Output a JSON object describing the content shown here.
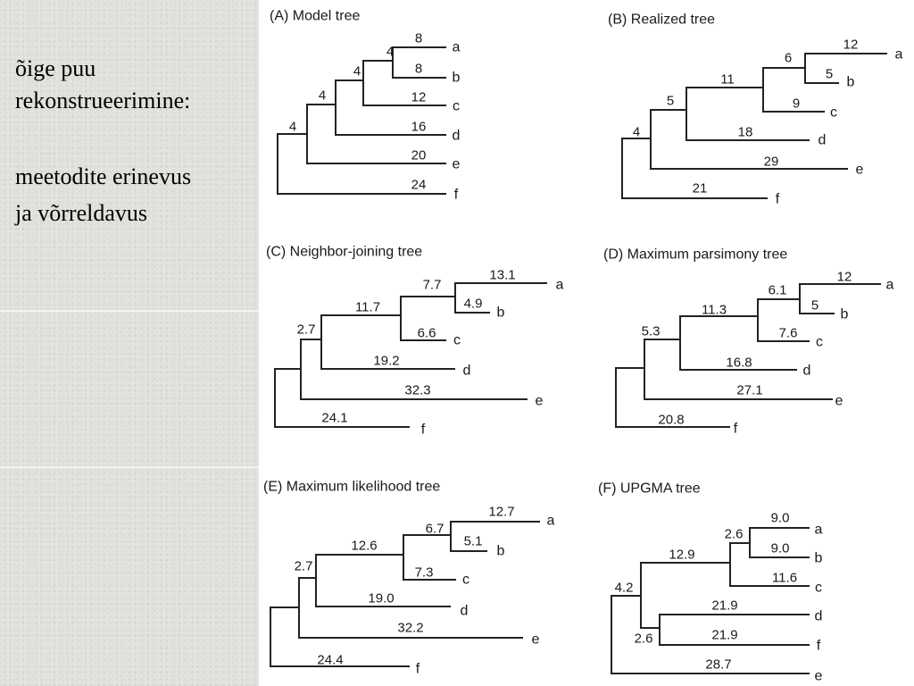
{
  "sidebar": {
    "heading_line1": "õige puu",
    "heading_line2": "rekonstrueerimine:",
    "subheading_line1": "meetodite erinevus",
    "subheading_line2": "ja võrreldavus"
  },
  "trees": [
    {
      "title": "(A) Model tree",
      "branch_labels": [
        "8",
        "8",
        "12",
        "16",
        "20",
        "24",
        "4",
        "4",
        "4",
        "4"
      ],
      "leaves": [
        "a",
        "b",
        "c",
        "d",
        "e",
        "f"
      ]
    },
    {
      "title": "(B) Realized tree",
      "branch_labels": [
        "12",
        "6",
        "5",
        "11",
        "9",
        "5",
        "18",
        "4",
        "29",
        "21"
      ],
      "leaves": [
        "a",
        "b",
        "c",
        "d",
        "e",
        "f"
      ]
    },
    {
      "title": "(C) Neighbor-joining  tree",
      "branch_labels": [
        "13.1",
        "7.7",
        "4.9",
        "11.7",
        "6.6",
        "2.7",
        "19.2",
        "32.3",
        "24.1"
      ],
      "leaves": [
        "a",
        "b",
        "c",
        "d",
        "e",
        "f"
      ]
    },
    {
      "title": "(D) Maximum parsimony tree",
      "branch_labels": [
        "12",
        "6.1",
        "5",
        "11.3",
        "7.6",
        "5.3",
        "16.8",
        "27.1",
        "20.8"
      ],
      "leaves": [
        "a",
        "b",
        "c",
        "d",
        "e",
        "f"
      ]
    },
    {
      "title": "(E) Maximum likelihood tree",
      "branch_labels": [
        "12.7",
        "6.7",
        "5.1",
        "12.6",
        "2.7",
        "7.3",
        "19.0",
        "32.2",
        "24.4"
      ],
      "leaves": [
        "a",
        "b",
        "c",
        "d",
        "e",
        "f"
      ]
    },
    {
      "title": "(F) UPGMA tree",
      "branch_labels": [
        "9.0",
        "2.6",
        "9.0",
        "12.9",
        "11.6",
        "4.2",
        "21.9",
        "2.6",
        "21.9",
        "28.7"
      ],
      "leaves": [
        "a",
        "b",
        "c",
        "d",
        "f",
        "e"
      ]
    }
  ]
}
